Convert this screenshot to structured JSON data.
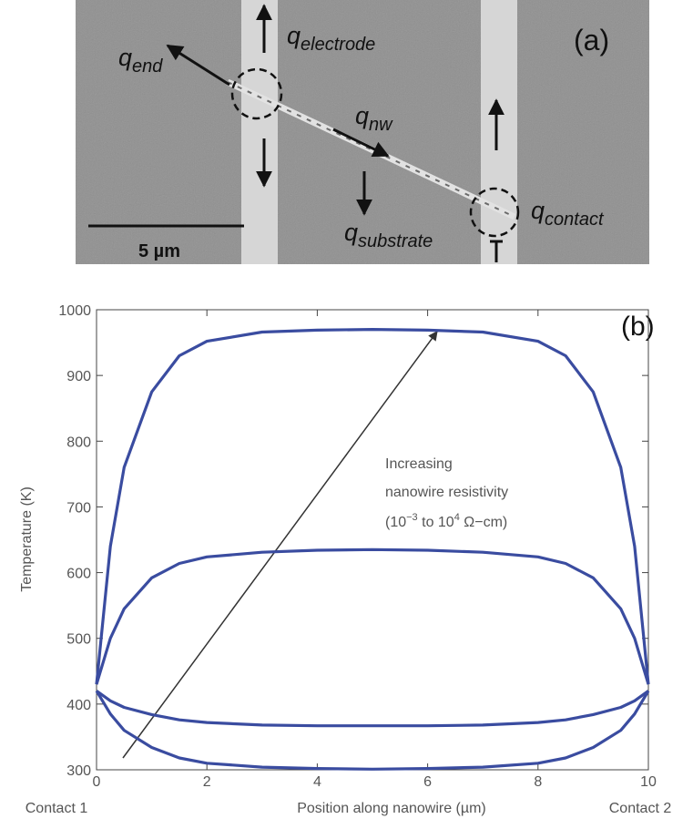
{
  "panel_a": {
    "label": "(a)",
    "scale_bar": "5 µm",
    "heat_flows": [
      {
        "symbol": "q",
        "subscript": "end"
      },
      {
        "symbol": "q",
        "subscript": "electrode"
      },
      {
        "symbol": "q",
        "subscript": "nw"
      },
      {
        "symbol": "q",
        "subscript": "substrate"
      },
      {
        "symbol": "q",
        "subscript": "contact"
      }
    ]
  },
  "chart_data": {
    "type": "line",
    "panel_label": "(b)",
    "x_label": "Position along nanowire (µm)",
    "y_label": "Temperature (K)",
    "x_end_labels": [
      "Contact 1",
      "Contact 2"
    ],
    "annotation": {
      "lines": [
        "Increasing",
        "nanowire resistivity"
      ],
      "range": [
        "(10",
        "−3",
        " to 10",
        "4",
        " Ω−cm)"
      ]
    },
    "xlim": [
      0,
      10
    ],
    "ylim": [
      300,
      1000
    ],
    "xticks": [
      0,
      2,
      4,
      6,
      8,
      10
    ],
    "yticks": [
      300,
      400,
      500,
      600,
      700,
      800,
      900,
      1000
    ],
    "x": [
      0,
      0.25,
      0.5,
      1,
      1.5,
      2,
      3,
      4,
      5,
      6,
      7,
      8,
      8.5,
      9,
      9.5,
      9.75,
      10
    ],
    "series": [
      {
        "color": "#3a4ca0",
        "values": [
          430,
          640,
          760,
          875,
          930,
          952,
          966,
          969,
          970,
          969,
          966,
          952,
          930,
          875,
          760,
          640,
          430
        ]
      },
      {
        "color": "#3a4ca0",
        "values": [
          430,
          500,
          545,
          592,
          614,
          624,
          631,
          634,
          635,
          634,
          631,
          624,
          614,
          592,
          545,
          500,
          430
        ]
      },
      {
        "color": "#3a4ca0",
        "values": [
          420,
          405,
          395,
          384,
          376,
          372,
          368,
          367,
          367,
          367,
          368,
          372,
          376,
          384,
          395,
          405,
          420
        ]
      },
      {
        "color": "#3a4ca0",
        "values": [
          420,
          385,
          360,
          334,
          318,
          310,
          304,
          302,
          301,
          302,
          304,
          310,
          318,
          334,
          360,
          385,
          420
        ]
      }
    ]
  }
}
